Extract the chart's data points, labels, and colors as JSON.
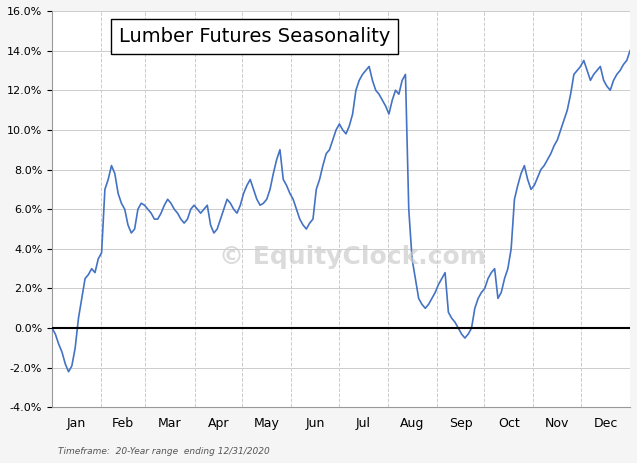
{
  "title": "Lumber Futures Seasonality",
  "subtitle": "Timeframe:  20-Year range  ending 12/31/2020",
  "line_color": "#4472C4",
  "bg_color": "#f5f5f5",
  "plot_bg_color": "#ffffff",
  "zero_line_color": "#000000",
  "grid_color": "#cccccc",
  "watermark_text": "© EquityClock.com",
  "watermark_color": "#cccccc",
  "ylim": [
    -0.04,
    0.16
  ],
  "yticks": [
    -0.04,
    -0.02,
    0.0,
    0.02,
    0.04,
    0.06,
    0.08,
    0.1,
    0.12,
    0.14,
    0.16
  ],
  "months": [
    "Jan",
    "Feb",
    "Mar",
    "Apr",
    "May",
    "Jun",
    "Jul",
    "Aug",
    "Sep",
    "Oct",
    "Nov",
    "Dec"
  ],
  "y_values": [
    0.0,
    -0.003,
    -0.008,
    -0.012,
    -0.018,
    -0.022,
    -0.019,
    -0.01,
    0.005,
    0.015,
    0.025,
    0.027,
    0.03,
    0.028,
    0.035,
    0.038,
    0.07,
    0.075,
    0.082,
    0.078,
    0.068,
    0.063,
    0.06,
    0.052,
    0.048,
    0.05,
    0.06,
    0.063,
    0.062,
    0.06,
    0.058,
    0.055,
    0.055,
    0.058,
    0.062,
    0.065,
    0.063,
    0.06,
    0.058,
    0.055,
    0.053,
    0.055,
    0.06,
    0.062,
    0.06,
    0.058,
    0.06,
    0.062,
    0.052,
    0.048,
    0.05,
    0.055,
    0.06,
    0.065,
    0.063,
    0.06,
    0.058,
    0.062,
    0.068,
    0.072,
    0.075,
    0.07,
    0.065,
    0.062,
    0.063,
    0.065,
    0.07,
    0.078,
    0.085,
    0.09,
    0.075,
    0.072,
    0.068,
    0.065,
    0.06,
    0.055,
    0.052,
    0.05,
    0.053,
    0.055,
    0.07,
    0.075,
    0.082,
    0.088,
    0.09,
    0.095,
    0.1,
    0.103,
    0.1,
    0.098,
    0.102,
    0.108,
    0.12,
    0.125,
    0.128,
    0.13,
    0.132,
    0.125,
    0.12,
    0.118,
    0.115,
    0.112,
    0.108,
    0.115,
    0.12,
    0.118,
    0.125,
    0.128,
    0.06,
    0.035,
    0.025,
    0.015,
    0.012,
    0.01,
    0.012,
    0.015,
    0.018,
    0.022,
    0.025,
    0.028,
    0.008,
    0.005,
    0.003,
    0.0,
    -0.003,
    -0.005,
    -0.003,
    0.0,
    0.01,
    0.015,
    0.018,
    0.02,
    0.025,
    0.028,
    0.03,
    0.015,
    0.018,
    0.025,
    0.03,
    0.04,
    0.065,
    0.072,
    0.078,
    0.082,
    0.075,
    0.07,
    0.072,
    0.076,
    0.08,
    0.082,
    0.085,
    0.088,
    0.092,
    0.095,
    0.1,
    0.105,
    0.11,
    0.118,
    0.128,
    0.13,
    0.132,
    0.135,
    0.13,
    0.125,
    0.128,
    0.13,
    0.132,
    0.125,
    0.122,
    0.12,
    0.125,
    0.128,
    0.13,
    0.133,
    0.135,
    0.14
  ]
}
